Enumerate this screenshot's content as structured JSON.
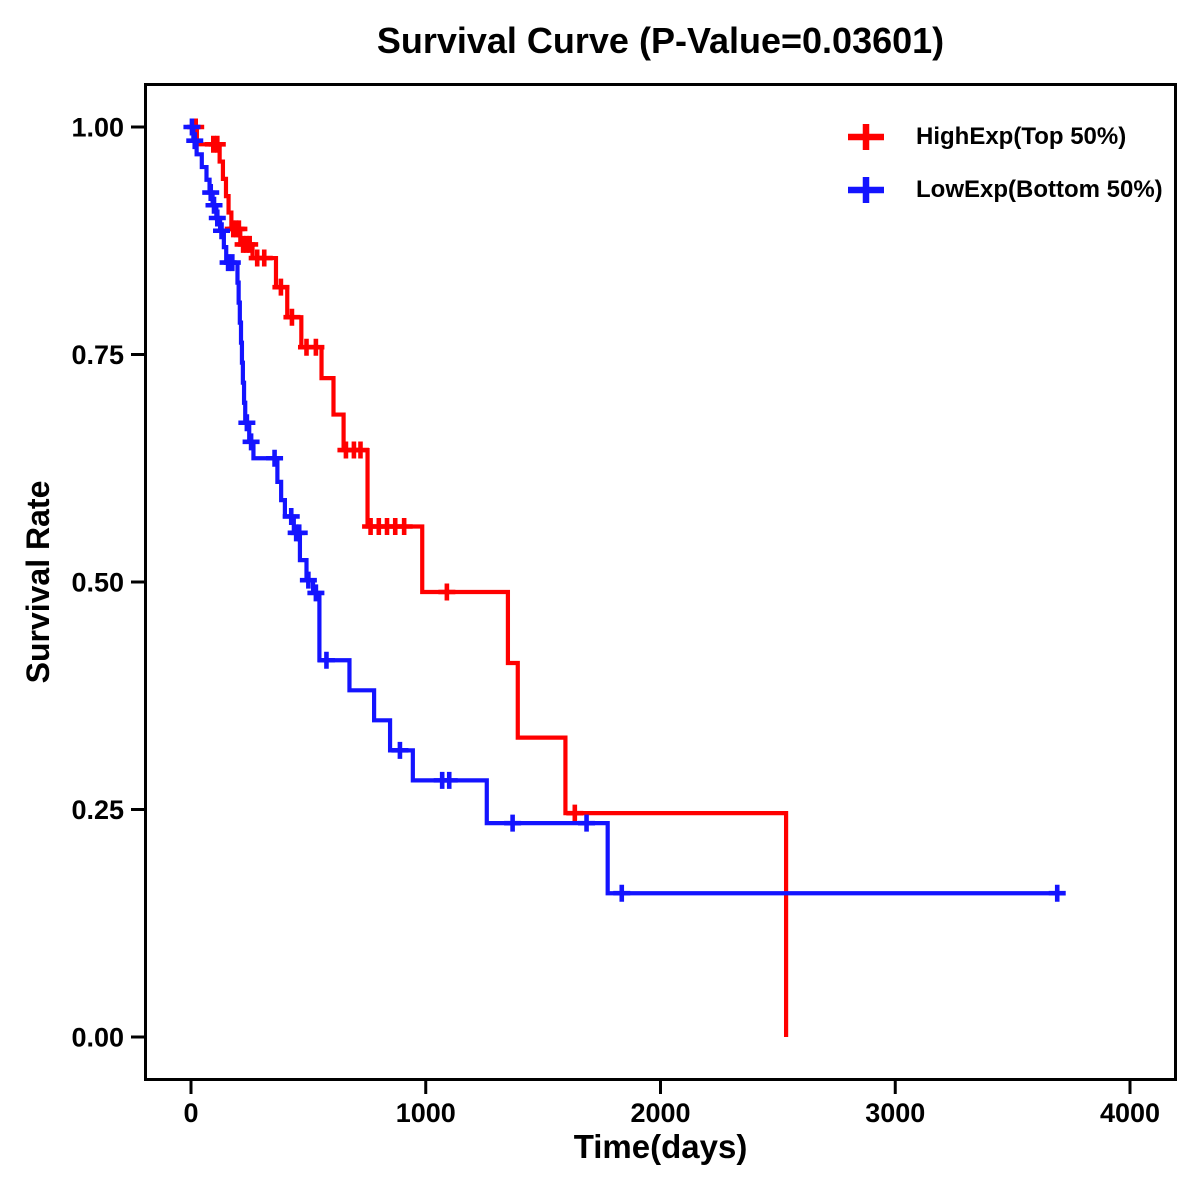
{
  "chart_data": {
    "type": "line",
    "subtype": "kaplan-meier-step-curve",
    "title": "Survival Curve (P-Value=0.03601)",
    "xlabel": "Time(days)",
    "ylabel": "Survival Rate",
    "xlim": [
      -200,
      4200
    ],
    "ylim": [
      -0.048,
      1.048
    ],
    "grid": false,
    "frame_color": "#000000",
    "legend_position": "top-right",
    "x_ticks": [
      {
        "value": 0,
        "label": "0"
      },
      {
        "value": 1000,
        "label": "1000"
      },
      {
        "value": 2000,
        "label": "2000"
      },
      {
        "value": 3000,
        "label": "3000"
      },
      {
        "value": 4000,
        "label": "4000"
      }
    ],
    "y_ticks": [
      {
        "value": 0.0,
        "label": "0.00"
      },
      {
        "value": 0.25,
        "label": "0.25"
      },
      {
        "value": 0.5,
        "label": "0.50"
      },
      {
        "value": 0.75,
        "label": "0.75"
      },
      {
        "value": 1.0,
        "label": "1.00"
      }
    ],
    "series": [
      {
        "name": "HighExp(Top 50%)",
        "color": "#FF0000",
        "start_survival": 1.0,
        "end_time": 2535,
        "steps": [
          [
            25,
            0.981
          ],
          [
            122,
            0.962
          ],
          [
            136,
            0.943
          ],
          [
            149,
            0.924
          ],
          [
            160,
            0.906
          ],
          [
            172,
            0.888
          ],
          [
            210,
            0.871
          ],
          [
            262,
            0.856
          ],
          [
            362,
            0.824
          ],
          [
            410,
            0.791
          ],
          [
            470,
            0.758
          ],
          [
            556,
            0.724
          ],
          [
            607,
            0.684
          ],
          [
            650,
            0.645
          ],
          [
            752,
            0.561
          ],
          [
            985,
            0.489
          ],
          [
            1350,
            0.411
          ],
          [
            1392,
            0.329
          ],
          [
            1595,
            0.246
          ],
          [
            2535,
            0.0
          ]
        ],
        "censors": [
          [
            20,
            1.0
          ],
          [
            95,
            0.981
          ],
          [
            112,
            0.981
          ],
          [
            180,
            0.888
          ],
          [
            192,
            0.888
          ],
          [
            204,
            0.888
          ],
          [
            222,
            0.871
          ],
          [
            236,
            0.871
          ],
          [
            250,
            0.871
          ],
          [
            282,
            0.856
          ],
          [
            312,
            0.856
          ],
          [
            383,
            0.824
          ],
          [
            430,
            0.791
          ],
          [
            492,
            0.758
          ],
          [
            532,
            0.758
          ],
          [
            660,
            0.645
          ],
          [
            694,
            0.645
          ],
          [
            722,
            0.645
          ],
          [
            765,
            0.561
          ],
          [
            800,
            0.561
          ],
          [
            835,
            0.561
          ],
          [
            870,
            0.561
          ],
          [
            908,
            0.561
          ],
          [
            1090,
            0.489
          ],
          [
            1635,
            0.246
          ]
        ]
      },
      {
        "name": "LowExp(Bottom 50%)",
        "color": "#1414FF",
        "start_survival": 1.0,
        "end_time": 3715,
        "steps": [
          [
            10,
            0.985
          ],
          [
            24,
            0.97
          ],
          [
            46,
            0.956
          ],
          [
            66,
            0.942
          ],
          [
            79,
            0.928
          ],
          [
            92,
            0.914
          ],
          [
            108,
            0.9
          ],
          [
            124,
            0.886
          ],
          [
            140,
            0.868
          ],
          [
            150,
            0.851
          ],
          [
            198,
            0.829
          ],
          [
            203,
            0.807
          ],
          [
            208,
            0.785
          ],
          [
            213,
            0.763
          ],
          [
            217,
            0.741
          ],
          [
            221,
            0.719
          ],
          [
            226,
            0.697
          ],
          [
            231,
            0.675
          ],
          [
            248,
            0.654
          ],
          [
            266,
            0.636
          ],
          [
            368,
            0.61
          ],
          [
            384,
            0.59
          ],
          [
            400,
            0.572
          ],
          [
            438,
            0.554
          ],
          [
            464,
            0.524
          ],
          [
            492,
            0.502
          ],
          [
            520,
            0.488
          ],
          [
            547,
            0.414
          ],
          [
            675,
            0.381
          ],
          [
            780,
            0.348
          ],
          [
            848,
            0.315
          ],
          [
            945,
            0.282
          ],
          [
            1260,
            0.235
          ],
          [
            1775,
            0.158
          ]
        ],
        "censors": [
          [
            4,
            1.0
          ],
          [
            16,
            0.985
          ],
          [
            84,
            0.928
          ],
          [
            98,
            0.914
          ],
          [
            112,
            0.9
          ],
          [
            130,
            0.886
          ],
          [
            158,
            0.851
          ],
          [
            176,
            0.851
          ],
          [
            238,
            0.675
          ],
          [
            256,
            0.654
          ],
          [
            356,
            0.636
          ],
          [
            427,
            0.572
          ],
          [
            448,
            0.554
          ],
          [
            461,
            0.554
          ],
          [
            500,
            0.502
          ],
          [
            532,
            0.488
          ],
          [
            577,
            0.414
          ],
          [
            890,
            0.315
          ],
          [
            1070,
            0.282
          ],
          [
            1100,
            0.282
          ],
          [
            1370,
            0.235
          ],
          [
            1685,
            0.235
          ],
          [
            1835,
            0.158
          ],
          [
            3690,
            0.158
          ]
        ]
      }
    ]
  }
}
